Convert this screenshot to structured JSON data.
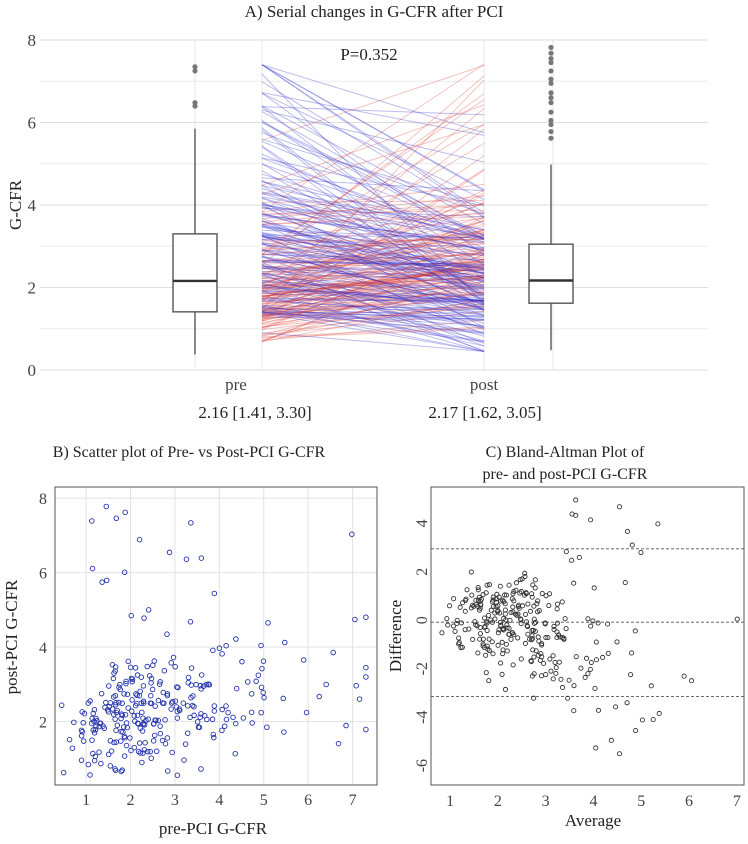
{
  "chart_data": [
    {
      "id": "A",
      "type": "box-paired-lines",
      "title": "A) Serial changes in G-CFR after PCI",
      "ylabel": "G-CFR",
      "ylim": [
        0,
        8
      ],
      "yticks": [
        "0",
        "2",
        "4",
        "6",
        "8"
      ],
      "categories": [
        "pre",
        "post"
      ],
      "summaries": [
        "2.16 [1.41, 3.30]",
        "2.17 [1.62, 3.05]"
      ],
      "annotation": "P=0.352",
      "boxes": [
        {
          "name": "pre",
          "min": 0.38,
          "q1": 1.41,
          "median": 2.16,
          "q3": 3.3,
          "max": 5.85,
          "outliers": [
            6.4,
            6.48,
            7.25,
            7.35
          ]
        },
        {
          "name": "post",
          "min": 0.48,
          "q1": 1.62,
          "median": 2.17,
          "q3": 3.05,
          "max": 4.98,
          "outliers": [
            5.62,
            5.78,
            5.95,
            6.05,
            6.25,
            6.48,
            6.6,
            6.72,
            6.95,
            7.05,
            7.25,
            7.45,
            7.55,
            7.68,
            7.82
          ]
        }
      ],
      "colors": {
        "increase": "#e0433a",
        "decrease": "#2c2ccc",
        "box": "#555555"
      }
    },
    {
      "id": "B",
      "type": "scatter",
      "title": "B) Scatter plot of Pre- vs Post-PCI G-CFR",
      "xlabel": "pre-PCI G-CFR",
      "ylabel": "post-PCI G-CFR",
      "xlim": [
        0.3,
        7.55
      ],
      "ylim": [
        0.3,
        8.3
      ],
      "xticks": [
        "1",
        "2",
        "3",
        "4",
        "5",
        "6",
        "7"
      ],
      "yticks": [
        "2",
        "4",
        "6",
        "8"
      ],
      "color": "#2233aa"
    },
    {
      "id": "C",
      "type": "scatter",
      "title": "C) Bland-Altman Plot of",
      "title2": "pre- and post-PCI G-CFR",
      "xlabel": "Average",
      "ylabel": "Difference",
      "xlim": [
        0.6,
        7.15
      ],
      "ylim": [
        -6.8,
        5.5
      ],
      "xticks": [
        "1",
        "2",
        "3",
        "4",
        "5",
        "6",
        "7"
      ],
      "yticks": [
        "-6",
        "-4",
        "-2",
        "0",
        "2",
        "4"
      ],
      "mean_diff": -0.08,
      "upper_loa": 2.95,
      "lower_loa": -3.15,
      "color": "#333333"
    }
  ]
}
